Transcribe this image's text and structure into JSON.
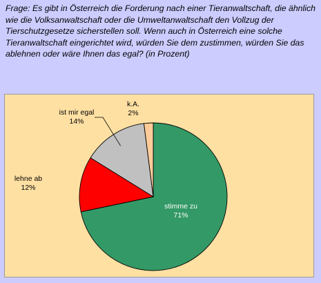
{
  "question": "Frage: Es gibt in Österreich die Forderung nach einer Tieranwaltschaft, die ähnlich wie die Volksanwaltschaft oder die Umweltanwaltschaft den Vollzug der Tierschutzgesetze sicherstellen soll. Wenn auch in Österreich eine solche Tieranwaltschaft eingerichtet wird, würden Sie dem zustimmen, würden Sie das ablehnen oder wäre Ihnen das egal? (in Prozent)",
  "chart_data": {
    "type": "pie",
    "title": "",
    "start_angle_deg": 0,
    "direction": "clockwise",
    "slices": [
      {
        "label": "stimme zu",
        "value": 71,
        "display": "71%",
        "color": "#339966"
      },
      {
        "label": "lehne ab",
        "value": 12,
        "display": "12%",
        "color": "#ff0000"
      },
      {
        "label": "ist mir egal",
        "value": 14,
        "display": "14%",
        "color": "#c0c0c0"
      },
      {
        "label": "k.A.",
        "value": 2,
        "display": "2%",
        "color": "#ffcc99"
      }
    ]
  }
}
